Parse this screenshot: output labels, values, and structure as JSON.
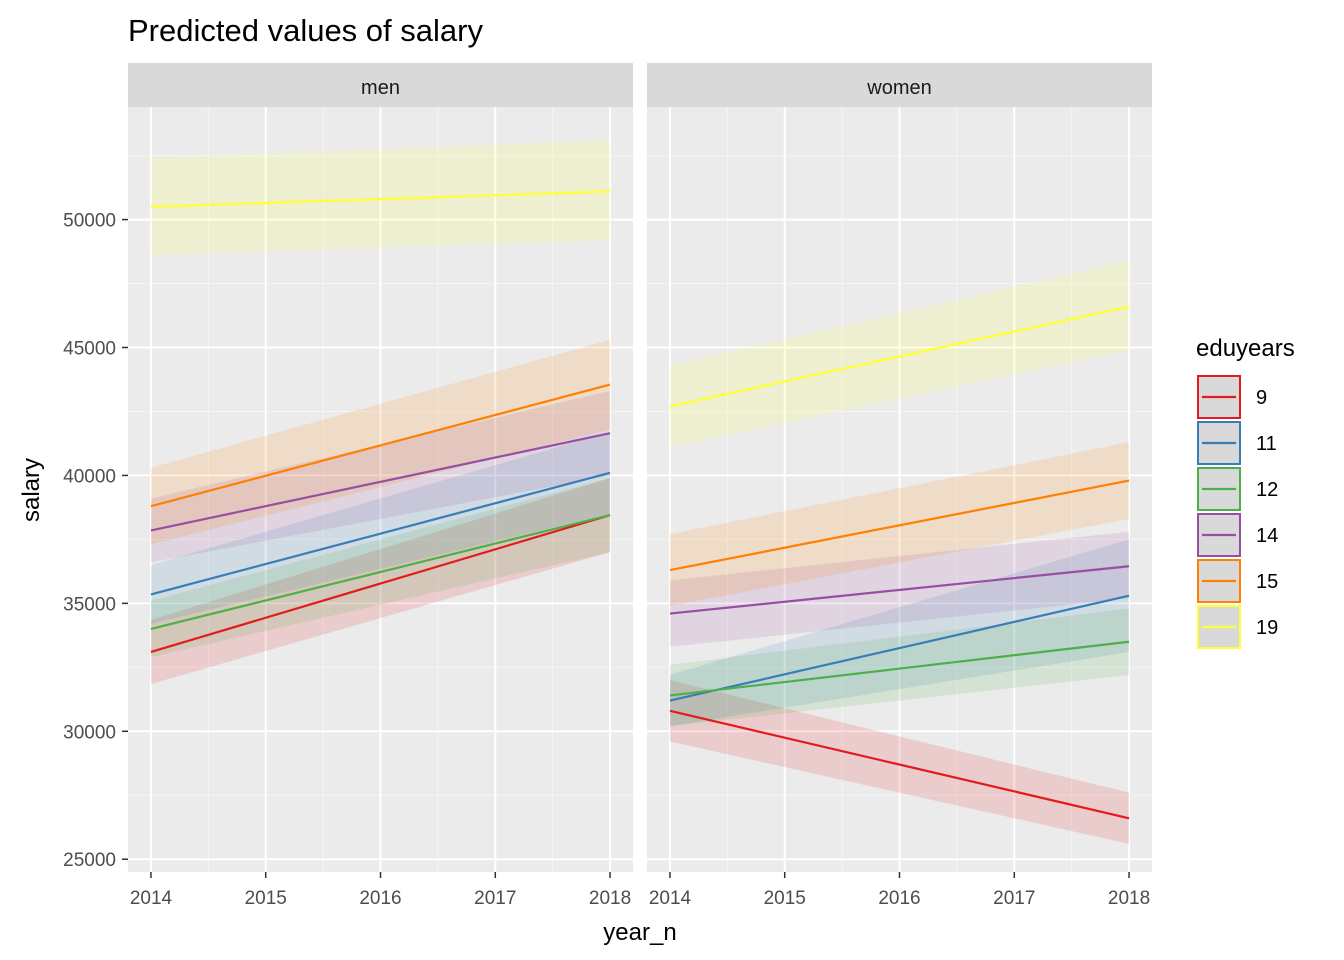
{
  "chart_data": {
    "type": "line",
    "title": "Predicted values of salary",
    "xlabel": "year_n",
    "ylabel": "salary",
    "x": [
      2014,
      2018
    ],
    "xticks": [
      "2014",
      "2015",
      "2016",
      "2017",
      "2018"
    ],
    "yticks": [
      "25000",
      "30000",
      "35000",
      "40000",
      "45000",
      "50000"
    ],
    "xlim": [
      2013.8,
      2018.2
    ],
    "ylim": [
      24500,
      54400
    ],
    "grid": true,
    "legend": {
      "title": "eduyears",
      "position": "right",
      "entries": [
        "9",
        "11",
        "12",
        "14",
        "15",
        "19"
      ]
    },
    "colors": {
      "9": "#e41a1c",
      "11": "#377eb8",
      "12": "#4daf4a",
      "14": "#984ea3",
      "15": "#ff7f00",
      "19": "#ffff33"
    },
    "panels": [
      {
        "label": "men",
        "series": [
          {
            "name": "9",
            "x": [
              2014,
              2018
            ],
            "values": [
              33100,
              38450
            ],
            "lower": [
              31850,
              37000
            ],
            "upper": [
              34350,
              39900
            ]
          },
          {
            "name": "11",
            "x": [
              2014,
              2018
            ],
            "values": [
              35350,
              40100
            ],
            "lower": [
              34200,
              38500
            ],
            "upper": [
              36500,
              41700
            ]
          },
          {
            "name": "12",
            "x": [
              2014,
              2018
            ],
            "values": [
              34000,
              38450
            ],
            "lower": [
              32900,
              37000
            ],
            "upper": [
              35100,
              39900
            ]
          },
          {
            "name": "14",
            "x": [
              2014,
              2018
            ],
            "values": [
              37850,
              41650
            ],
            "lower": [
              36600,
              40000
            ],
            "upper": [
              39100,
              43300
            ]
          },
          {
            "name": "15",
            "x": [
              2014,
              2018
            ],
            "values": [
              38800,
              43550
            ],
            "lower": [
              37300,
              41800
            ],
            "upper": [
              40300,
              45300
            ]
          },
          {
            "name": "19",
            "x": [
              2014,
              2018
            ],
            "values": [
              50500,
              51100
            ],
            "lower": [
              48600,
              49200
            ],
            "upper": [
              52400,
              53100
            ]
          }
        ]
      },
      {
        "label": "women",
        "series": [
          {
            "name": "9",
            "x": [
              2014,
              2018
            ],
            "values": [
              30800,
              26600
            ],
            "lower": [
              29600,
              25600
            ],
            "upper": [
              32000,
              27600
            ]
          },
          {
            "name": "11",
            "x": [
              2014,
              2018
            ],
            "values": [
              31200,
              35300
            ],
            "lower": [
              30200,
              33100
            ],
            "upper": [
              32200,
              37500
            ]
          },
          {
            "name": "12",
            "x": [
              2014,
              2018
            ],
            "values": [
              31400,
              33500
            ],
            "lower": [
              30200,
              32200
            ],
            "upper": [
              32600,
              34800
            ]
          },
          {
            "name": "14",
            "x": [
              2014,
              2018
            ],
            "values": [
              34600,
              36450
            ],
            "lower": [
              33300,
              35200
            ],
            "upper": [
              35900,
              37800
            ]
          },
          {
            "name": "15",
            "x": [
              2014,
              2018
            ],
            "values": [
              36300,
              39800
            ],
            "lower": [
              34900,
              38300
            ],
            "upper": [
              37700,
              41300
            ]
          },
          {
            "name": "19",
            "x": [
              2014,
              2018
            ],
            "values": [
              42700,
              46600
            ],
            "lower": [
              41100,
              44900
            ],
            "upper": [
              44300,
              48400
            ]
          }
        ]
      }
    ]
  }
}
